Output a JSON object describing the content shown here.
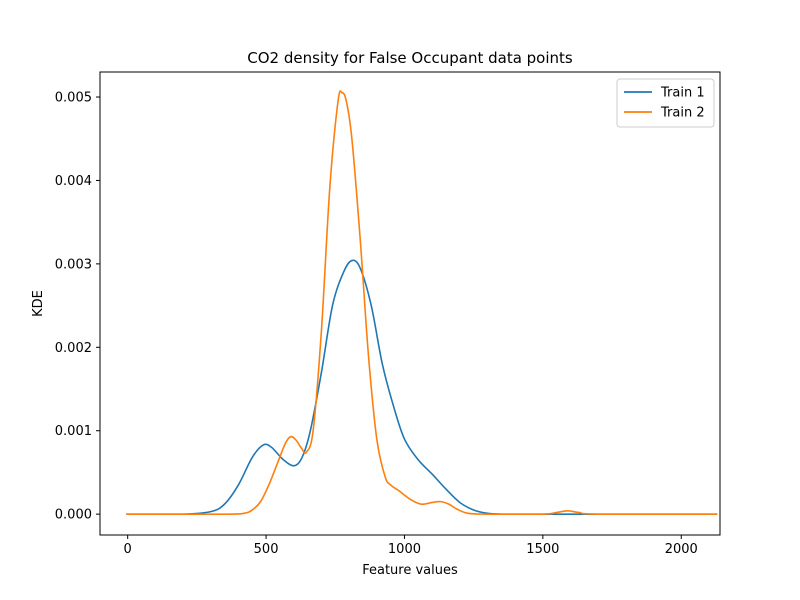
{
  "chart_data": {
    "type": "line",
    "title": "CO2 density for False Occupant data points",
    "xlabel": "Feature values",
    "ylabel": "KDE",
    "xlim": [
      -100,
      2140
    ],
    "ylim": [
      -0.00025,
      0.0053
    ],
    "xticks": [
      0,
      500,
      1000,
      1500,
      2000
    ],
    "xtick_labels": [
      "0",
      "500",
      "1000",
      "1500",
      "2000"
    ],
    "yticks": [
      0,
      0.001,
      0.002,
      0.003,
      0.004,
      0.005
    ],
    "ytick_labels": [
      "0.000",
      "0.001",
      "0.002",
      "0.003",
      "0.004",
      "0.005"
    ],
    "grid": false,
    "legend_position": "top-right",
    "series": [
      {
        "name": "Train 1",
        "color": "#1f77b4",
        "x": [
          -5,
          200,
          300,
          350,
          400,
          450,
          490,
          520,
          560,
          600,
          630,
          660,
          700,
          740,
          780,
          810,
          840,
          880,
          920,
          960,
          1000,
          1050,
          1100,
          1150,
          1200,
          1250,
          1300,
          1350,
          1400,
          1500,
          2130
        ],
        "y": [
          0,
          0,
          3e-05,
          0.00012,
          0.00035,
          0.00068,
          0.00083,
          0.0008,
          0.00066,
          0.00058,
          0.00068,
          0.001,
          0.0017,
          0.0025,
          0.0029,
          0.00304,
          0.00295,
          0.0025,
          0.0018,
          0.0013,
          0.0009,
          0.00065,
          0.00048,
          0.0003,
          0.00014,
          5e-05,
          1e-05,
          0,
          0,
          0,
          0
        ]
      },
      {
        "name": "Train 2",
        "color": "#ff7f0e",
        "x": [
          -5,
          350,
          420,
          450,
          480,
          510,
          540,
          570,
          590,
          610,
          630,
          645,
          670,
          700,
          730,
          760,
          775,
          790,
          810,
          840,
          870,
          900,
          930,
          950,
          980,
          1020,
          1060,
          1100,
          1130,
          1160,
          1190,
          1230,
          1300,
          1500,
          1550,
          1590,
          1630,
          1700,
          2130
        ],
        "y": [
          0,
          0,
          1e-05,
          5e-05,
          0.00015,
          0.00035,
          0.0006,
          0.00085,
          0.00093,
          0.00088,
          0.00078,
          0.00074,
          0.001,
          0.0022,
          0.0039,
          0.00495,
          0.00505,
          0.00495,
          0.0045,
          0.0033,
          0.0019,
          0.0009,
          0.00045,
          0.00035,
          0.00028,
          0.00018,
          0.00012,
          0.00014,
          0.00015,
          0.00012,
          6e-05,
          1e-05,
          0,
          0,
          2e-05,
          4e-05,
          2e-05,
          0,
          0
        ]
      }
    ]
  }
}
